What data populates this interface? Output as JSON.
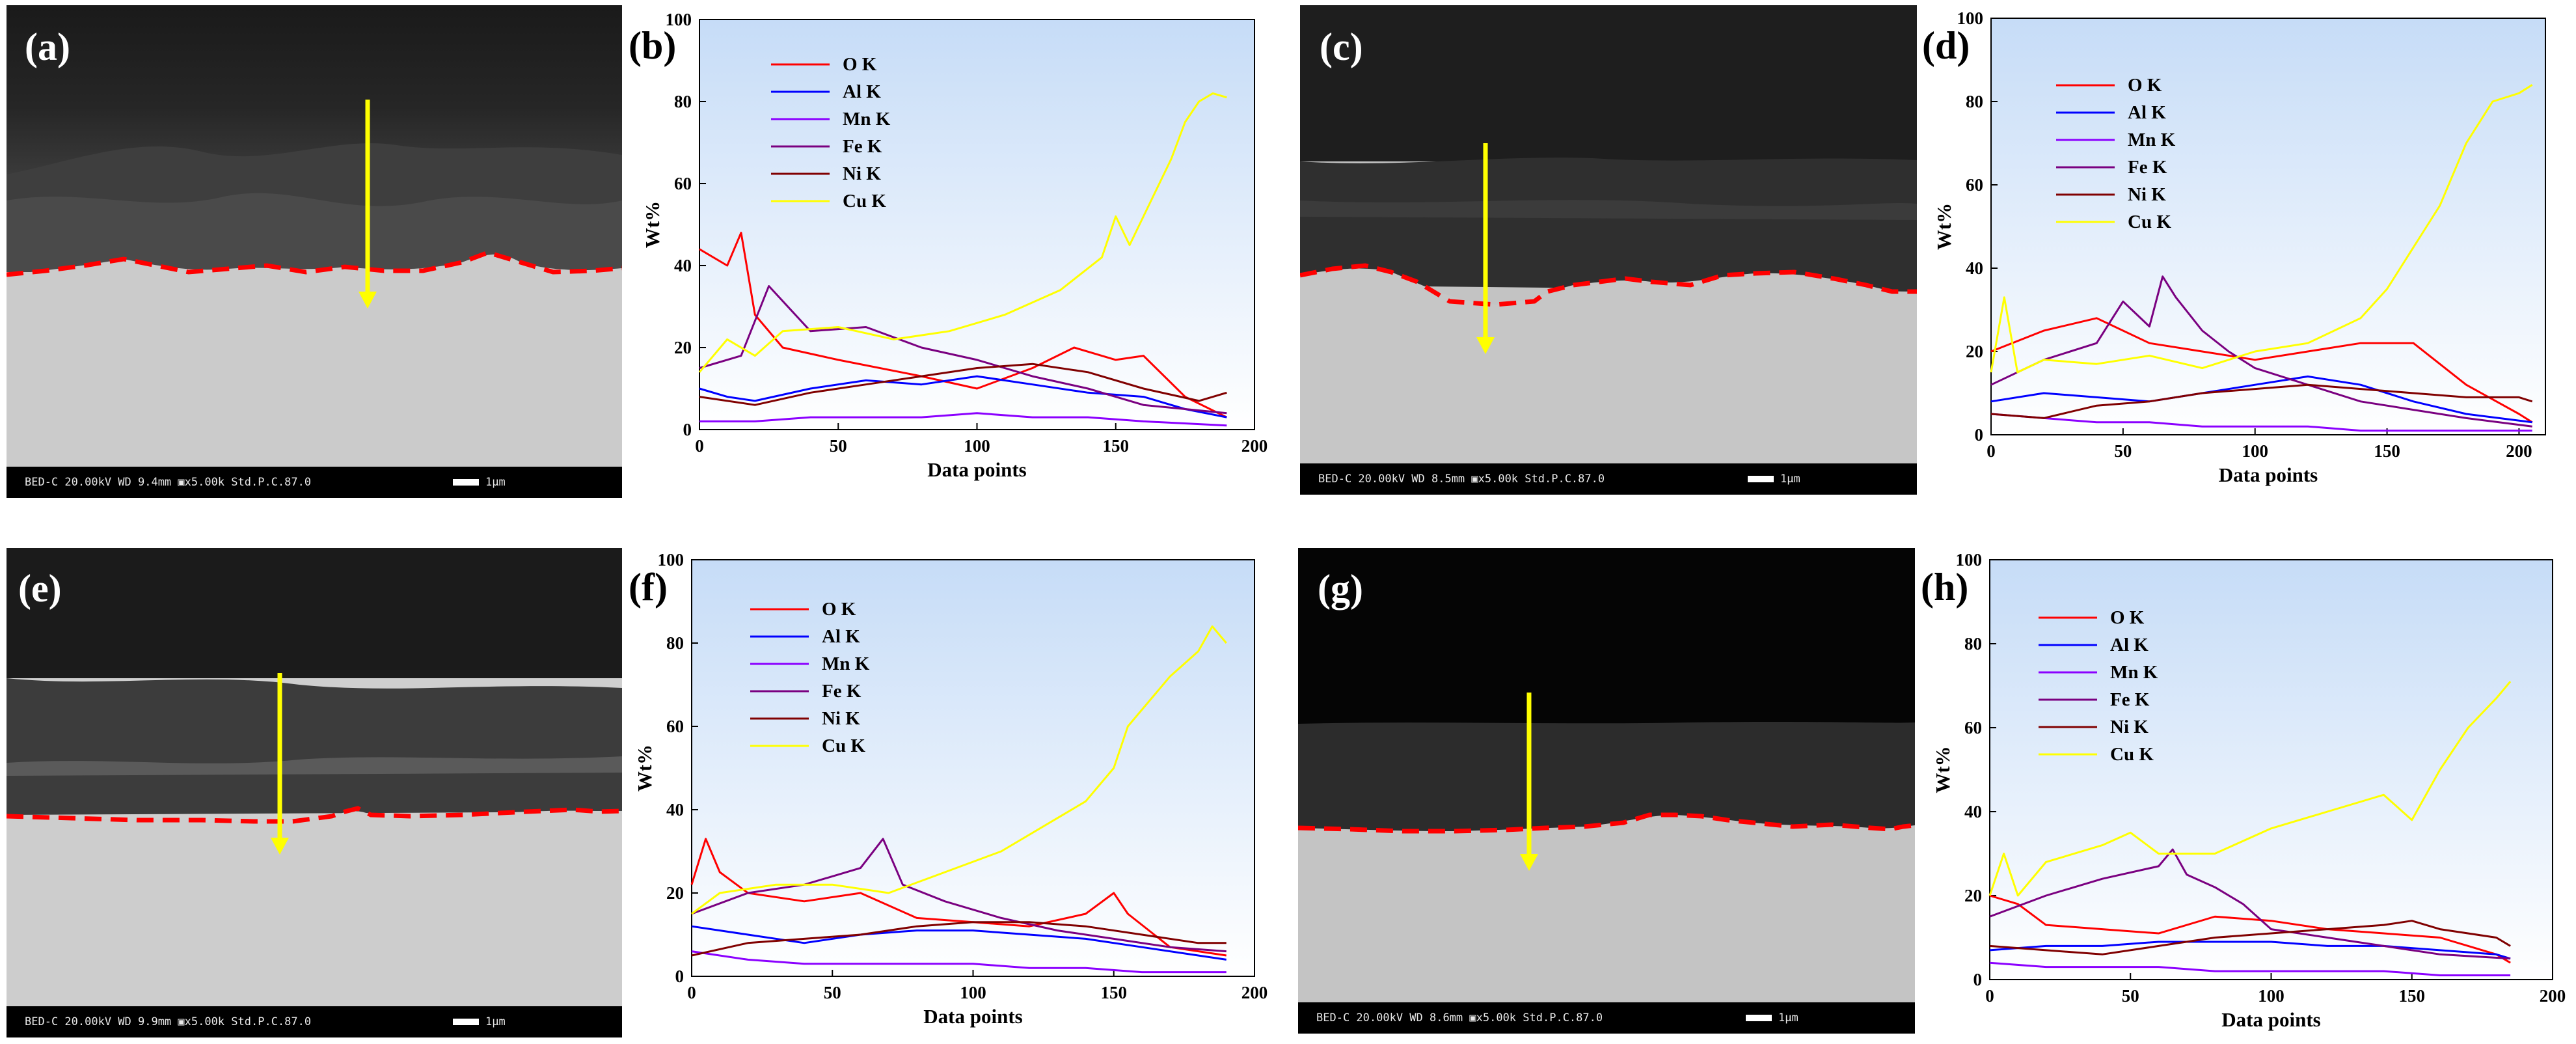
{
  "panels": {
    "a": {
      "label": "(a)",
      "sem_info": "BED-C   20.00kV  WD 9.4mm  ▣x5.00k  Std.P.C.87.0",
      "scale": "1µm"
    },
    "b": {
      "label": "(b)"
    },
    "c": {
      "label": "(c)",
      "sem_info": "BED-C   20.00kV  WD 8.5mm  ▣x5.00k  Std.P.C.87.0",
      "scale": "1µm"
    },
    "d": {
      "label": "(d)"
    },
    "e": {
      "label": "(e)",
      "sem_info": "BED-C   20.00kV  WD 9.9mm  ▣x5.00k  Std.P.C.87.0",
      "scale": "1µm"
    },
    "f": {
      "label": "(f)"
    },
    "g": {
      "label": "(g)",
      "sem_info": "BED-C   20.00kV  WD 8.6mm  ▣x5.00k  Std.P.C.87.0",
      "scale": "1µm"
    },
    "h": {
      "label": "(h)"
    }
  },
  "colors": {
    "O": "#ff0000",
    "Al": "#0000ff",
    "Mn": "#8b00ff",
    "Fe": "#7a0080",
    "Ni": "#800000",
    "Cu": "#ffff00",
    "arrow": "#ffff00",
    "interface": "#ff0000"
  },
  "chart_data": [
    {
      "panel": "b",
      "type": "line",
      "xlabel": "Data points",
      "ylabel": "Wt%",
      "xlim": [
        0,
        200
      ],
      "ylim": [
        0,
        100
      ],
      "xticks": [
        0,
        50,
        100,
        150,
        200
      ],
      "yticks": [
        0,
        20,
        40,
        60,
        80,
        100
      ],
      "legend": [
        "O  K",
        "Al K",
        "Mn K",
        "Fe K",
        "Ni K",
        "Cu K"
      ],
      "series": [
        {
          "name": "O K",
          "x": [
            0,
            10,
            15,
            20,
            30,
            50,
            80,
            100,
            120,
            135,
            150,
            160,
            175,
            190
          ],
          "values": [
            44,
            40,
            48,
            28,
            20,
            17,
            13,
            10,
            15,
            20,
            17,
            18,
            8,
            3
          ]
        },
        {
          "name": "Al K",
          "x": [
            0,
            10,
            20,
            40,
            60,
            80,
            100,
            120,
            140,
            160,
            175,
            190
          ],
          "values": [
            10,
            8,
            7,
            10,
            12,
            11,
            13,
            11,
            9,
            8,
            5,
            3
          ]
        },
        {
          "name": "Mn K",
          "x": [
            0,
            20,
            40,
            60,
            80,
            100,
            120,
            140,
            160,
            190
          ],
          "values": [
            2,
            2,
            3,
            3,
            3,
            4,
            3,
            3,
            2,
            1
          ]
        },
        {
          "name": "Fe K",
          "x": [
            0,
            15,
            25,
            40,
            60,
            80,
            100,
            120,
            140,
            160,
            190
          ],
          "values": [
            15,
            18,
            35,
            24,
            25,
            20,
            17,
            13,
            10,
            6,
            4
          ]
        },
        {
          "name": "Ni K",
          "x": [
            0,
            20,
            40,
            60,
            80,
            100,
            120,
            140,
            160,
            180,
            190
          ],
          "values": [
            8,
            6,
            9,
            11,
            13,
            15,
            16,
            14,
            10,
            7,
            9
          ]
        },
        {
          "name": "Cu K",
          "x": [
            0,
            10,
            20,
            30,
            50,
            70,
            90,
            110,
            130,
            145,
            150,
            155,
            160,
            170,
            175,
            180,
            185,
            190
          ],
          "values": [
            14,
            22,
            18,
            24,
            25,
            22,
            24,
            28,
            34,
            42,
            52,
            45,
            52,
            66,
            75,
            80,
            82,
            81
          ]
        }
      ]
    },
    {
      "panel": "d",
      "type": "line",
      "xlabel": "Data points",
      "ylabel": "Wt%",
      "xlim": [
        0,
        210
      ],
      "ylim": [
        0,
        100
      ],
      "xticks": [
        0,
        50,
        100,
        150,
        200
      ],
      "yticks": [
        0,
        20,
        40,
        60,
        80,
        100
      ],
      "legend": [
        "O  K",
        "Al K",
        "Mn K",
        "Fe K",
        "Ni K",
        "Cu K"
      ],
      "series": [
        {
          "name": "O K",
          "x": [
            0,
            20,
            40,
            60,
            80,
            100,
            120,
            140,
            160,
            180,
            200,
            205
          ],
          "values": [
            20,
            25,
            28,
            22,
            20,
            18,
            20,
            22,
            22,
            12,
            5,
            3
          ]
        },
        {
          "name": "Al K",
          "x": [
            0,
            20,
            40,
            60,
            80,
            100,
            120,
            140,
            160,
            180,
            205
          ],
          "values": [
            8,
            10,
            9,
            8,
            10,
            12,
            14,
            12,
            8,
            5,
            3
          ]
        },
        {
          "name": "Mn K",
          "x": [
            0,
            20,
            40,
            60,
            80,
            100,
            120,
            140,
            160,
            180,
            205
          ],
          "values": [
            5,
            4,
            3,
            3,
            2,
            2,
            2,
            1,
            1,
            1,
            1
          ]
        },
        {
          "name": "Fe K",
          "x": [
            0,
            20,
            40,
            50,
            60,
            65,
            70,
            80,
            90,
            100,
            120,
            140,
            160,
            180,
            205
          ],
          "values": [
            12,
            18,
            22,
            32,
            26,
            38,
            33,
            25,
            20,
            16,
            12,
            8,
            6,
            4,
            2
          ]
        },
        {
          "name": "Ni K",
          "x": [
            0,
            20,
            40,
            60,
            80,
            100,
            120,
            140,
            160,
            180,
            200,
            205
          ],
          "values": [
            5,
            4,
            7,
            8,
            10,
            11,
            12,
            11,
            10,
            9,
            9,
            8
          ]
        },
        {
          "name": "Cu K",
          "x": [
            0,
            5,
            10,
            20,
            40,
            60,
            80,
            100,
            120,
            140,
            150,
            160,
            170,
            180,
            190,
            200,
            205
          ],
          "values": [
            15,
            33,
            15,
            18,
            17,
            19,
            16,
            20,
            22,
            28,
            35,
            45,
            55,
            70,
            80,
            82,
            84
          ]
        }
      ]
    },
    {
      "panel": "f",
      "type": "line",
      "xlabel": "Data points",
      "ylabel": "Wt%",
      "xlim": [
        0,
        200
      ],
      "ylim": [
        0,
        100
      ],
      "xticks": [
        0,
        50,
        100,
        150,
        200
      ],
      "yticks": [
        0,
        20,
        40,
        60,
        80,
        100
      ],
      "legend": [
        "O  K",
        "Al K",
        "Mn K",
        "Fe K",
        "Ni K",
        "Cu K"
      ],
      "series": [
        {
          "name": "O K",
          "x": [
            0,
            5,
            10,
            20,
            40,
            60,
            80,
            100,
            120,
            140,
            150,
            155,
            170,
            190
          ],
          "values": [
            22,
            33,
            25,
            20,
            18,
            20,
            14,
            13,
            12,
            15,
            20,
            15,
            7,
            5
          ]
        },
        {
          "name": "Al K",
          "x": [
            0,
            20,
            40,
            60,
            80,
            100,
            120,
            140,
            160,
            190
          ],
          "values": [
            12,
            10,
            8,
            10,
            11,
            11,
            10,
            9,
            7,
            4
          ]
        },
        {
          "name": "Mn K",
          "x": [
            0,
            20,
            40,
            60,
            80,
            100,
            120,
            140,
            160,
            190
          ],
          "values": [
            6,
            4,
            3,
            3,
            3,
            3,
            2,
            2,
            1,
            1
          ]
        },
        {
          "name": "Fe K",
          "x": [
            0,
            20,
            40,
            60,
            68,
            75,
            90,
            110,
            130,
            150,
            170,
            190
          ],
          "values": [
            15,
            20,
            22,
            26,
            33,
            22,
            18,
            14,
            11,
            9,
            7,
            6
          ]
        },
        {
          "name": "Ni K",
          "x": [
            0,
            20,
            40,
            60,
            80,
            100,
            120,
            140,
            160,
            180,
            190
          ],
          "values": [
            5,
            8,
            9,
            10,
            12,
            13,
            13,
            12,
            10,
            8,
            8
          ]
        },
        {
          "name": "Cu K",
          "x": [
            0,
            10,
            30,
            50,
            70,
            90,
            110,
            130,
            140,
            150,
            155,
            160,
            170,
            180,
            185,
            190
          ],
          "values": [
            15,
            20,
            22,
            22,
            20,
            25,
            30,
            38,
            42,
            50,
            60,
            64,
            72,
            78,
            84,
            80
          ]
        }
      ]
    },
    {
      "panel": "h",
      "type": "line",
      "xlabel": "Data points",
      "ylabel": "Wt%",
      "xlim": [
        0,
        200
      ],
      "ylim": [
        0,
        100
      ],
      "xticks": [
        0,
        50,
        100,
        150,
        200
      ],
      "yticks": [
        0,
        20,
        40,
        60,
        80,
        100
      ],
      "legend": [
        "O  K",
        "Al K",
        "Mn K",
        "Fe K",
        "Ni K",
        "Cu K"
      ],
      "series": [
        {
          "name": "O K",
          "x": [
            0,
            10,
            20,
            40,
            60,
            80,
            100,
            120,
            140,
            160,
            180,
            185
          ],
          "values": [
            20,
            18,
            13,
            12,
            11,
            15,
            14,
            12,
            11,
            10,
            6,
            4
          ]
        },
        {
          "name": "Al K",
          "x": [
            0,
            20,
            40,
            60,
            80,
            100,
            120,
            140,
            160,
            180,
            185
          ],
          "values": [
            7,
            8,
            8,
            9,
            9,
            9,
            8,
            8,
            7,
            6,
            5
          ]
        },
        {
          "name": "Mn K",
          "x": [
            0,
            20,
            40,
            60,
            80,
            100,
            120,
            140,
            160,
            185
          ],
          "values": [
            4,
            3,
            3,
            3,
            2,
            2,
            2,
            2,
            1,
            1
          ]
        },
        {
          "name": "Fe K",
          "x": [
            0,
            20,
            40,
            60,
            65,
            70,
            80,
            90,
            100,
            120,
            140,
            160,
            185
          ],
          "values": [
            15,
            20,
            24,
            27,
            31,
            25,
            22,
            18,
            12,
            10,
            8,
            6,
            5
          ]
        },
        {
          "name": "Ni K",
          "x": [
            0,
            20,
            40,
            60,
            80,
            100,
            120,
            140,
            150,
            160,
            180,
            185
          ],
          "values": [
            8,
            7,
            6,
            8,
            10,
            11,
            12,
            13,
            14,
            12,
            10,
            8
          ]
        },
        {
          "name": "Cu K",
          "x": [
            0,
            5,
            10,
            20,
            40,
            50,
            60,
            80,
            100,
            120,
            140,
            150,
            160,
            170,
            180,
            185
          ],
          "values": [
            20,
            30,
            20,
            28,
            32,
            35,
            30,
            30,
            36,
            40,
            44,
            38,
            50,
            60,
            67,
            71
          ]
        }
      ]
    }
  ]
}
